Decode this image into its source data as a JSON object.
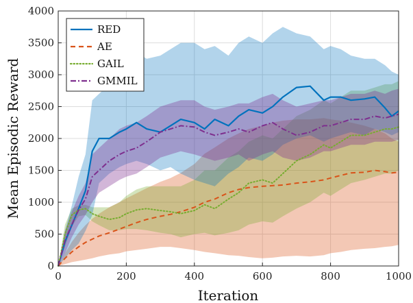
{
  "chart_data": {
    "type": "line",
    "xlabel": "Iteration",
    "ylabel": "Mean Episodic Reward",
    "xlim": [
      0,
      1000
    ],
    "ylim": [
      0,
      4000
    ],
    "xticks": [
      0,
      200,
      400,
      600,
      800,
      1000
    ],
    "yticks": [
      0,
      500,
      1000,
      1500,
      2000,
      2500,
      3000,
      3500,
      4000
    ],
    "grid": true,
    "legend_position": "top-left",
    "x": [
      0,
      20,
      40,
      60,
      80,
      100,
      120,
      150,
      180,
      200,
      230,
      260,
      300,
      330,
      360,
      400,
      430,
      460,
      500,
      530,
      560,
      600,
      630,
      660,
      700,
      740,
      780,
      800,
      830,
      860,
      900,
      930,
      960,
      980,
      1000
    ],
    "series": [
      {
        "name": "RED",
        "color": "#0072BD",
        "style": "solid",
        "mean": [
          0,
          380,
          640,
          900,
          1180,
          1800,
          2000,
          2000,
          2100,
          2150,
          2250,
          2150,
          2100,
          2200,
          2300,
          2250,
          2150,
          2300,
          2200,
          2350,
          2450,
          2400,
          2500,
          2650,
          2800,
          2820,
          2600,
          2650,
          2650,
          2600,
          2620,
          2650,
          2480,
          2350,
          2430
        ],
        "lower": [
          0,
          120,
          250,
          350,
          550,
          800,
          1300,
          1450,
          1550,
          1600,
          1650,
          1600,
          1500,
          1550,
          1450,
          1350,
          1300,
          1250,
          1450,
          1550,
          1700,
          1650,
          1750,
          1900,
          2000,
          2050,
          1950,
          2000,
          2050,
          2100,
          2050,
          2150,
          2100,
          2050,
          2100
        ],
        "upper": [
          0,
          550,
          950,
          1400,
          1750,
          2600,
          2700,
          2850,
          3000,
          3200,
          3350,
          3250,
          3300,
          3400,
          3500,
          3500,
          3400,
          3450,
          3300,
          3500,
          3600,
          3500,
          3650,
          3750,
          3650,
          3600,
          3400,
          3450,
          3400,
          3300,
          3250,
          3250,
          3150,
          3050,
          3000
        ]
      },
      {
        "name": "AE",
        "color": "#D95319",
        "style": "dashed",
        "mean": [
          0,
          120,
          220,
          300,
          370,
          420,
          470,
          520,
          580,
          620,
          680,
          730,
          780,
          810,
          850,
          920,
          1000,
          1050,
          1150,
          1200,
          1230,
          1250,
          1260,
          1270,
          1300,
          1320,
          1350,
          1380,
          1420,
          1460,
          1470,
          1500,
          1480,
          1460,
          1470
        ],
        "lower": [
          0,
          30,
          60,
          80,
          100,
          120,
          150,
          180,
          200,
          230,
          250,
          270,
          300,
          300,
          280,
          250,
          220,
          200,
          170,
          160,
          140,
          120,
          130,
          150,
          160,
          150,
          170,
          200,
          220,
          250,
          270,
          280,
          300,
          310,
          330
        ],
        "upper": [
          0,
          200,
          380,
          520,
          640,
          740,
          820,
          920,
          1000,
          1060,
          1140,
          1220,
          1320,
          1380,
          1460,
          1600,
          1760,
          1860,
          2000,
          2080,
          2150,
          2200,
          2250,
          2280,
          2300,
          2300,
          2320,
          2300,
          2280,
          2250,
          2200,
          2150,
          2080,
          2000,
          1950
        ]
      },
      {
        "name": "GAIL",
        "color": "#77AC30",
        "style": "dotted",
        "mean": [
          0,
          500,
          800,
          880,
          900,
          820,
          780,
          730,
          760,
          820,
          880,
          900,
          870,
          850,
          820,
          870,
          960,
          900,
          1050,
          1150,
          1300,
          1350,
          1300,
          1450,
          1650,
          1750,
          1900,
          1850,
          1950,
          2050,
          2050,
          2100,
          2150,
          2150,
          2180
        ],
        "lower": [
          0,
          300,
          620,
          780,
          800,
          700,
          640,
          560,
          560,
          580,
          580,
          560,
          520,
          500,
          450,
          500,
          520,
          480,
          520,
          560,
          650,
          700,
          680,
          780,
          900,
          1000,
          1150,
          1100,
          1200,
          1300,
          1350,
          1400,
          1450,
          1450,
          1500
        ],
        "upper": [
          0,
          650,
          900,
          950,
          960,
          920,
          920,
          920,
          1000,
          1100,
          1200,
          1250,
          1250,
          1250,
          1250,
          1350,
          1500,
          1500,
          1700,
          1800,
          1950,
          2050,
          2000,
          2150,
          2350,
          2450,
          2600,
          2550,
          2650,
          2750,
          2750,
          2800,
          2850,
          2850,
          2900
        ]
      },
      {
        "name": "GMMIL",
        "color": "#7E2F8E",
        "style": "dashdot",
        "mean": [
          0,
          400,
          650,
          880,
          1050,
          1400,
          1500,
          1650,
          1750,
          1800,
          1850,
          1950,
          2100,
          2150,
          2200,
          2180,
          2100,
          2050,
          2100,
          2150,
          2100,
          2200,
          2250,
          2150,
          2050,
          2100,
          2200,
          2200,
          2250,
          2300,
          2300,
          2350,
          2320,
          2350,
          2380
        ],
        "lower": [
          0,
          200,
          450,
          650,
          800,
          1000,
          1150,
          1250,
          1350,
          1400,
          1450,
          1550,
          1700,
          1750,
          1800,
          1750,
          1700,
          1650,
          1700,
          1750,
          1650,
          1750,
          1800,
          1700,
          1650,
          1700,
          1800,
          1800,
          1850,
          1900,
          1900,
          1950,
          1950,
          1950,
          1980
        ],
        "upper": [
          0,
          550,
          850,
          1100,
          1300,
          1750,
          1850,
          2000,
          2150,
          2200,
          2250,
          2350,
          2500,
          2550,
          2600,
          2600,
          2500,
          2450,
          2500,
          2550,
          2550,
          2650,
          2700,
          2600,
          2500,
          2550,
          2600,
          2600,
          2650,
          2700,
          2700,
          2750,
          2700,
          2750,
          2780
        ]
      }
    ]
  }
}
